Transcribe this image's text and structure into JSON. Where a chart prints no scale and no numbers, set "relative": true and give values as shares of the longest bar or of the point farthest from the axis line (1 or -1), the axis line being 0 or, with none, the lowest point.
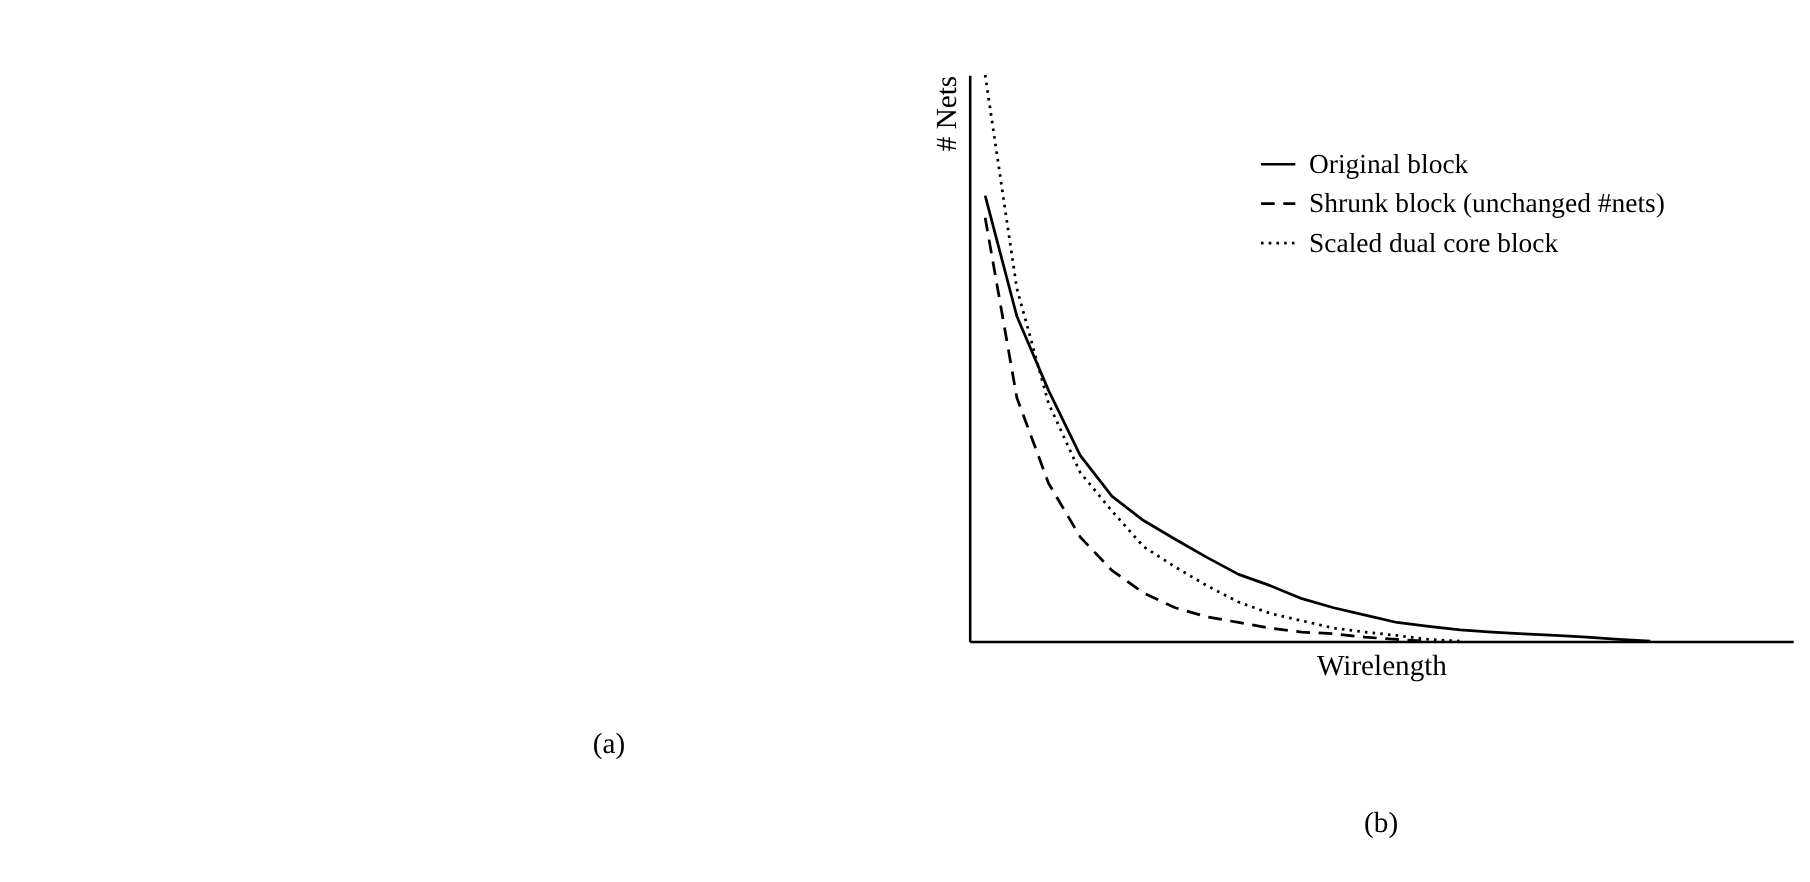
{
  "chart_data": {
    "type": "line",
    "relative": true,
    "xlabel": "Wirelength",
    "ylabel": "# Nets",
    "categories": [
      null,
      null,
      null,
      null,
      null,
      null,
      null,
      null,
      null,
      null,
      null,
      null,
      null,
      null,
      null,
      null,
      null,
      null,
      null,
      null,
      null,
      null,
      null,
      null,
      null
    ],
    "series": [
      {
        "name": "Original block",
        "color": "#000000",
        "line_style": "solid",
        "values": [
          0.787,
          0.574,
          0.443,
          0.328,
          0.256,
          0.213,
          0.18,
          0.148,
          0.118,
          0.098,
          0.075,
          0.059,
          0.046,
          0.033,
          0.026,
          0.02,
          0.016,
          0.013,
          0.01,
          0.007,
          0.003,
          0,
          null,
          null,
          null
        ]
      },
      {
        "name": "Shrunk block (unchanged #nets)",
        "color": "#000000",
        "line_style": "dashed",
        "values": [
          0.748,
          0.43,
          0.279,
          0.184,
          0.125,
          0.085,
          0.059,
          0.043,
          0.033,
          0.023,
          0.016,
          0.013,
          0.007,
          0.003,
          0,
          null,
          null,
          null,
          null,
          null,
          null,
          null,
          null,
          null,
          null
        ]
      },
      {
        "name": "Scaled dual core block",
        "color": "#000000",
        "line_style": "dotted",
        "values": [
          1.0,
          0.623,
          0.42,
          0.298,
          0.23,
          0.167,
          0.131,
          0.098,
          0.069,
          0.049,
          0.036,
          0.023,
          0.016,
          0.01,
          0.003,
          0,
          null,
          null,
          null,
          null,
          null,
          null,
          null,
          null,
          null
        ]
      }
    ],
    "legend": "top right",
    "grid": false,
    "marker": "none",
    "annotations": [
      "(a)",
      "(b)"
    ]
  }
}
